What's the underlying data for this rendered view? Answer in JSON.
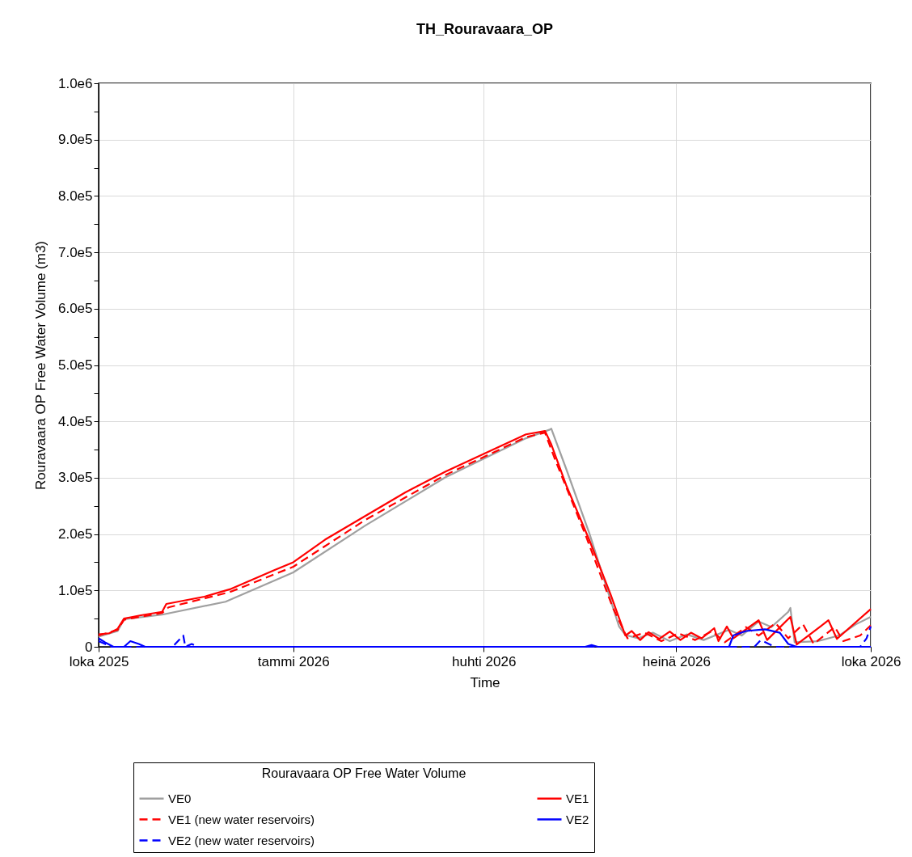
{
  "chart_data": {
    "type": "line",
    "title": "TH_Rouravaara_OP",
    "xlabel": "Time",
    "ylabel": "Rouravaara OP Free Water Volume (m3)",
    "legend_title": "Rouravaara OP Free Water Volume",
    "legend": "bottom",
    "grid": true,
    "marker": "none",
    "xlim": [
      "2025-10-01",
      "2026-10-01"
    ],
    "xticks": [
      {
        "value": "2025-10-01",
        "label": "loka 2025"
      },
      {
        "value": "2026-01-01",
        "label": "tammi 2026"
      },
      {
        "value": "2026-04-01",
        "label": "huhti 2026"
      },
      {
        "value": "2026-07-01",
        "label": "heinä 2026"
      },
      {
        "value": "2026-10-01",
        "label": "loka 2026"
      }
    ],
    "ylim": [
      0,
      1000000
    ],
    "yticks": [
      {
        "value": 0,
        "label": "0"
      },
      {
        "value": 50000,
        "label": null
      },
      {
        "value": 100000,
        "label": "1.0e5"
      },
      {
        "value": 150000,
        "label": null
      },
      {
        "value": 200000,
        "label": "2.0e5"
      },
      {
        "value": 250000,
        "label": null
      },
      {
        "value": 300000,
        "label": "3.0e5"
      },
      {
        "value": 350000,
        "label": null
      },
      {
        "value": 400000,
        "label": "4.0e5"
      },
      {
        "value": 450000,
        "label": null
      },
      {
        "value": 500000,
        "label": "5.0e5"
      },
      {
        "value": 550000,
        "label": null
      },
      {
        "value": 600000,
        "label": "6.0e5"
      },
      {
        "value": 650000,
        "label": null
      },
      {
        "value": 700000,
        "label": "7.0e5"
      },
      {
        "value": 750000,
        "label": null
      },
      {
        "value": 800000,
        "label": "8.0e5"
      },
      {
        "value": 850000,
        "label": null
      },
      {
        "value": 900000,
        "label": "9.0e5"
      },
      {
        "value": 950000,
        "label": null
      },
      {
        "value": 1000000,
        "label": "1.0e6"
      }
    ],
    "series": [
      {
        "name": "VE0",
        "color": "#a0a0a0",
        "line_style": "solid",
        "x": [
          "2025-10-01",
          "2025-10-10",
          "2025-10-13",
          "2025-10-31",
          "2025-11-30",
          "2026-01-01",
          "2026-02-04",
          "2026-03-14",
          "2026-04-21",
          "2026-05-02",
          "2026-05-03",
          "2026-05-10",
          "2026-05-21",
          "2026-06-04",
          "2026-06-07",
          "2026-06-13",
          "2026-06-20",
          "2026-06-28",
          "2026-07-06",
          "2026-07-14",
          "2026-07-26",
          "2026-08-01",
          "2026-08-09",
          "2026-08-15",
          "2026-08-23",
          "2026-08-24",
          "2026-08-26",
          "2026-09-06",
          "2026-09-16",
          "2026-09-24",
          "2026-10-01"
        ],
        "values": [
          18000,
          28000,
          49000,
          57000,
          80000,
          132000,
          215000,
          301000,
          370000,
          385000,
          387000,
          316000,
          201000,
          36000,
          21000,
          15000,
          25000,
          10000,
          22000,
          12000,
          30000,
          20000,
          45000,
          35000,
          62000,
          69000,
          8000,
          10000,
          20000,
          40000,
          53000
        ]
      },
      {
        "name": "VE1",
        "color": "#ff0000",
        "line_style": "solid",
        "x": [
          "2025-10-01",
          "2025-10-06",
          "2025-10-10",
          "2025-10-13",
          "2025-10-21",
          "2025-10-31",
          "2025-11-02",
          "2025-11-20",
          "2025-12-02",
          "2025-12-23",
          "2026-01-01",
          "2026-01-16",
          "2026-02-04",
          "2026-02-23",
          "2026-03-14",
          "2026-04-02",
          "2026-04-21",
          "2026-04-30",
          "2026-05-03",
          "2026-05-10",
          "2026-05-21",
          "2026-05-31",
          "2026-06-07",
          "2026-06-10",
          "2026-06-14",
          "2026-06-18",
          "2026-06-23",
          "2026-06-28",
          "2026-07-03",
          "2026-07-08",
          "2026-07-13",
          "2026-07-19",
          "2026-07-21",
          "2026-07-25",
          "2026-07-28",
          "2026-08-09",
          "2026-08-13",
          "2026-08-24",
          "2026-08-27",
          "2026-09-11",
          "2026-09-15",
          "2026-10-01"
        ],
        "values": [
          22000,
          24000,
          32000,
          50000,
          56000,
          62000,
          76000,
          89000,
          102000,
          136000,
          150000,
          190000,
          232000,
          274000,
          311000,
          344000,
          377000,
          383000,
          359000,
          287000,
          189000,
          93000,
          20000,
          28000,
          12000,
          26000,
          14000,
          27000,
          12000,
          25000,
          15000,
          33000,
          10000,
          36000,
          15000,
          47000,
          12000,
          53000,
          4000,
          47000,
          14000,
          67000
        ]
      },
      {
        "name": "VE1 (new water reservoirs)",
        "color": "#ff0000",
        "line_style": "dashed",
        "x": [
          "2025-10-01",
          "2025-10-10",
          "2025-10-13",
          "2025-10-31",
          "2025-11-03",
          "2025-12-02",
          "2026-01-01",
          "2026-02-04",
          "2026-03-14",
          "2026-04-21",
          "2026-04-30",
          "2026-05-05",
          "2026-05-19",
          "2026-06-01",
          "2026-06-08",
          "2026-06-16",
          "2026-06-24",
          "2026-07-02",
          "2026-07-10",
          "2026-07-18",
          "2026-07-24",
          "2026-08-03",
          "2026-08-09",
          "2026-08-17",
          "2026-08-23",
          "2026-08-30",
          "2026-09-04",
          "2026-09-14",
          "2026-09-18",
          "2026-09-26",
          "2026-10-01"
        ],
        "values": [
          20000,
          30000,
          48000,
          60000,
          70000,
          97000,
          142000,
          225000,
          305000,
          372000,
          380000,
          330000,
          200000,
          70000,
          15000,
          25000,
          10000,
          24000,
          12000,
          28000,
          8000,
          35000,
          20000,
          42000,
          15000,
          40000,
          5000,
          35000,
          10000,
          20000,
          38000
        ]
      },
      {
        "name": "VE2",
        "color": "#0000ff",
        "line_style": "solid",
        "x": [
          "2025-10-01",
          "2025-10-04",
          "2025-10-08",
          "2025-10-13",
          "2025-10-16",
          "2025-10-20",
          "2025-10-23",
          "2026-05-19",
          "2026-05-22",
          "2026-05-25",
          "2026-07-26",
          "2026-07-28",
          "2026-08-03",
          "2026-08-12",
          "2026-08-19",
          "2026-08-23",
          "2026-08-27",
          "2026-10-01"
        ],
        "values": [
          15000,
          8000,
          0,
          0,
          10000,
          5000,
          0,
          0,
          3000,
          0,
          0,
          20000,
          28000,
          31000,
          25000,
          5000,
          0,
          0
        ]
      },
      {
        "name": "VE2 (new water reservoirs)",
        "color": "#0000ff",
        "line_style": "dashed",
        "x": [
          "2025-10-01",
          "2025-10-07",
          "2025-11-05",
          "2025-11-10",
          "2025-11-11",
          "2025-11-14",
          "2025-11-17",
          "2026-08-07",
          "2026-08-10",
          "2026-08-15",
          "2026-08-17",
          "2026-09-26",
          "2026-09-29",
          "2026-10-01"
        ],
        "values": [
          10000,
          0,
          0,
          20000,
          0,
          5000,
          0,
          0,
          12000,
          3000,
          0,
          0,
          15000,
          36000
        ]
      }
    ]
  }
}
